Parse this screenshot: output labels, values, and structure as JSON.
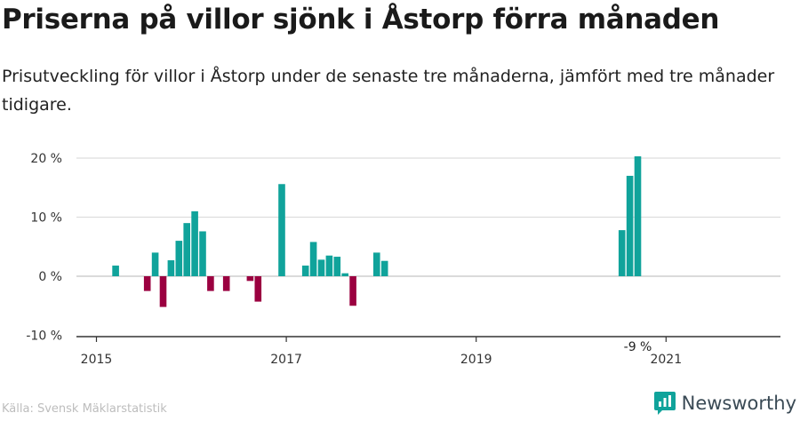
{
  "title": "Priserna på villor sjönk i Åstorp förra månaden",
  "subtitle": "Prisutveckling för villor i Åstorp under de senaste tre månaderna, jämfört med tre månader tidigare.",
  "source": "Källa: Svensk Mäklarstatistik",
  "brand": "Newsworthy",
  "colors": {
    "positive": "#10a39b",
    "negative": "#9b0040",
    "grid": "#dddddd",
    "axis": "#333333"
  },
  "chart_data": {
    "type": "bar",
    "x_start": "2015-01",
    "x_labels": [
      "2015",
      "2017",
      "2019",
      "2021"
    ],
    "y_ticks": [
      "20 %",
      "10 %",
      "0 %",
      "-10 %"
    ],
    "y_tick_values": [
      20,
      10,
      0,
      -10
    ],
    "ylim": [
      -10,
      20
    ],
    "grid": true,
    "last_label": "-9 %",
    "values": [
      null,
      null,
      1.8,
      null,
      null,
      null,
      -2.5,
      4.0,
      -5.2,
      2.7,
      6.0,
      9.0,
      11.0,
      7.6,
      -2.5,
      null,
      -2.5,
      null,
      null,
      -0.8,
      -4.3,
      null,
      null,
      15.6,
      null,
      null,
      1.8,
      5.8,
      2.8,
      3.5,
      3.3,
      0.5,
      -5.0,
      null,
      null,
      4.0,
      2.6,
      null,
      null,
      null,
      null,
      null,
      null,
      null,
      null,
      null,
      null,
      null,
      null,
      null,
      null,
      null,
      null,
      null,
      null,
      null,
      null,
      null,
      null,
      null,
      null,
      null,
      null,
      null,
      null,
      null,
      7.8,
      17.0,
      20.3,
      null,
      null,
      null,
      null,
      null,
      null,
      null,
      null,
      null,
      null,
      null,
      null,
      null,
      null,
      null,
      null,
      null,
      null,
      null,
      null,
      null,
      null,
      null,
      null,
      null,
      null,
      null,
      null,
      null,
      null,
      null,
      null,
      null,
      null,
      null,
      null,
      null,
      null,
      null,
      null,
      null,
      null,
      null,
      null,
      null,
      null,
      null,
      null,
      null,
      null,
      null,
      null,
      null,
      null,
      null,
      null,
      null,
      null,
      null,
      null
    ]
  }
}
